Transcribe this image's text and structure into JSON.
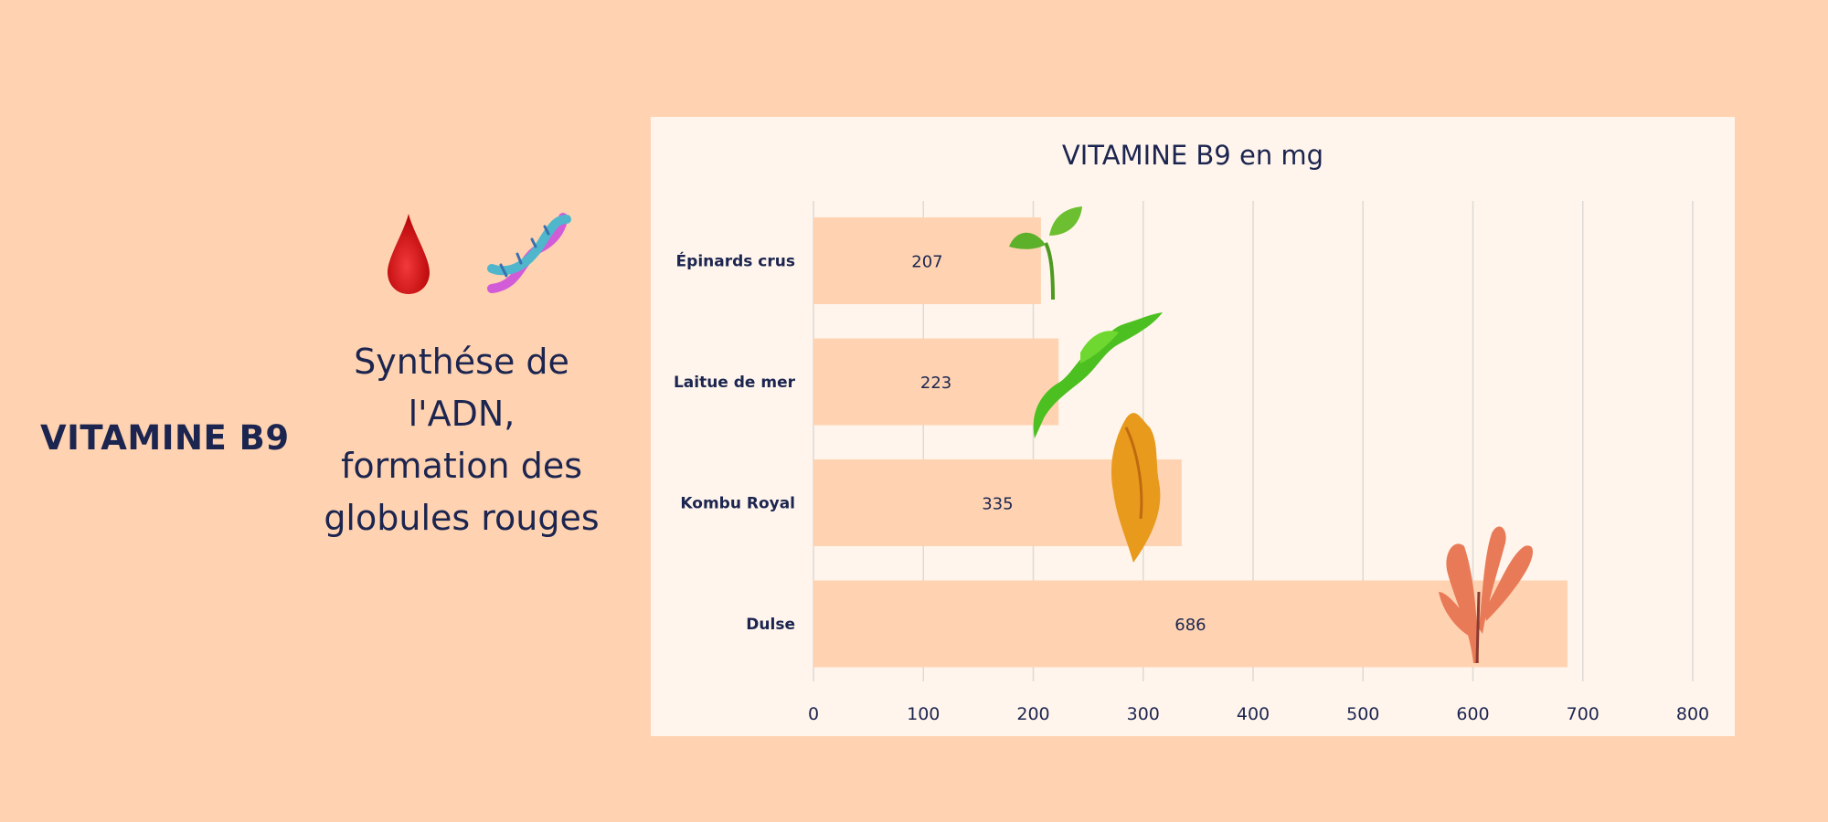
{
  "heading": "VITAMINE B9",
  "icons": [
    "blood-drop-icon",
    "dna-icon"
  ],
  "description": [
    "Synthése de",
    "l'ADN,",
    "formation des",
    "globules rouges"
  ],
  "colors": {
    "background": "#FFD3B1",
    "panel": "#FFF5EC",
    "bar": "#FFD3B1",
    "text": "#1C2550",
    "grid": "#DDDAD6"
  },
  "chart_data": {
    "type": "bar",
    "orientation": "horizontal",
    "title": "VITAMINE B9 en mg",
    "categories": [
      "Épinards crus",
      "Laitue de mer",
      "Kombu Royal",
      "Dulse"
    ],
    "values": [
      207,
      223,
      335,
      686
    ],
    "xlim": [
      0,
      800
    ],
    "xticks": [
      "0",
      "100",
      "200",
      "300",
      "400",
      "500",
      "600",
      "700",
      "800"
    ],
    "grid": true,
    "xlabel": "",
    "ylabel": ""
  }
}
